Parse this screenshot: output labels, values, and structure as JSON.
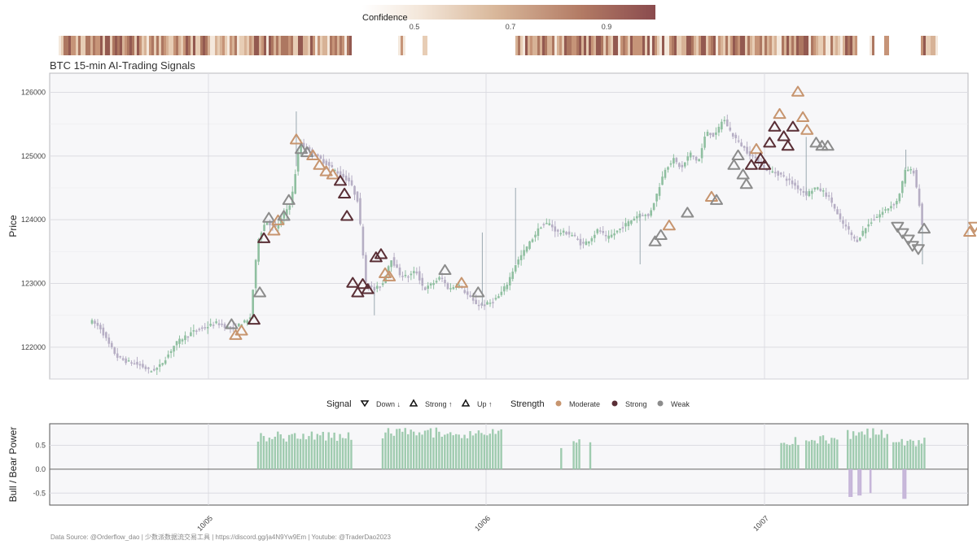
{
  "chart_data": [
    {
      "type": "candlestick",
      "title": "BTC 15-min AI-Trading Signals",
      "xlabel": "",
      "ylabel": "Price",
      "ylim": [
        121500,
        126300
      ],
      "x_ticks": [
        "10/05",
        "10/06",
        "10/07"
      ],
      "y_ticks": [
        122000,
        123000,
        124000,
        125000,
        126000
      ],
      "close_path": [
        [
          0.0,
          122400
        ],
        [
          1.0,
          122300
        ],
        [
          2.0,
          122050
        ],
        [
          3.0,
          121850
        ],
        [
          4.0,
          121780
        ],
        [
          5.0,
          121750
        ],
        [
          6.0,
          121700
        ],
        [
          7.0,
          121620
        ],
        [
          8.0,
          121680
        ],
        [
          9.0,
          121850
        ],
        [
          10.0,
          122050
        ],
        [
          11.0,
          122150
        ],
        [
          12.0,
          122230
        ],
        [
          13.0,
          122290
        ],
        [
          14.0,
          122330
        ],
        [
          15.0,
          122380
        ],
        [
          16.0,
          122330
        ],
        [
          17.0,
          122280
        ],
        [
          18.0,
          122380
        ],
        [
          19.0,
          122420
        ],
        [
          20.0,
          123700
        ],
        [
          21.0,
          124000
        ],
        [
          22.0,
          123850
        ],
        [
          23.0,
          124050
        ],
        [
          24.0,
          124300
        ],
        [
          25.0,
          125200
        ],
        [
          26.0,
          125100
        ],
        [
          27.0,
          125000
        ],
        [
          28.0,
          124900
        ],
        [
          29.0,
          124800
        ],
        [
          30.0,
          124700
        ],
        [
          31.0,
          124600
        ],
        [
          32.0,
          124300
        ],
        [
          33.0,
          123000
        ],
        [
          34.0,
          122900
        ],
        [
          35.0,
          123000
        ],
        [
          36.0,
          123400
        ],
        [
          37.0,
          123150
        ],
        [
          38.0,
          123100
        ],
        [
          39.0,
          123200
        ],
        [
          40.0,
          122900
        ],
        [
          41.0,
          123000
        ],
        [
          42.0,
          123100
        ],
        [
          43.0,
          122900
        ],
        [
          44.0,
          123000
        ],
        [
          45.0,
          122850
        ],
        [
          46.0,
          122700
        ],
        [
          47.0,
          122650
        ],
        [
          48.0,
          122700
        ],
        [
          49.0,
          122800
        ],
        [
          50.0,
          123000
        ],
        [
          51.0,
          123300
        ],
        [
          52.0,
          123500
        ],
        [
          53.0,
          123700
        ],
        [
          54.0,
          123900
        ],
        [
          55.0,
          123950
        ],
        [
          56.0,
          123800
        ],
        [
          57.0,
          123800
        ],
        [
          58.0,
          123750
        ],
        [
          59.0,
          123600
        ],
        [
          60.0,
          123700
        ],
        [
          61.0,
          123850
        ],
        [
          62.0,
          123700
        ],
        [
          63.0,
          123800
        ],
        [
          64.0,
          123900
        ],
        [
          65.0,
          124000
        ],
        [
          66.0,
          124100
        ],
        [
          67.0,
          124050
        ],
        [
          68.0,
          124400
        ],
        [
          69.0,
          124800
        ],
        [
          70.0,
          124950
        ],
        [
          71.0,
          124800
        ],
        [
          72.0,
          125050
        ],
        [
          73.0,
          124900
        ],
        [
          74.0,
          125400
        ],
        [
          75.0,
          125300
        ],
        [
          76.0,
          125600
        ],
        [
          77.0,
          125350
        ],
        [
          78.0,
          125200
        ],
        [
          79.0,
          125050
        ],
        [
          80.0,
          124950
        ],
        [
          81.0,
          124800
        ],
        [
          82.0,
          124750
        ],
        [
          83.0,
          124700
        ],
        [
          84.0,
          124600
        ],
        [
          85.0,
          124500
        ],
        [
          86.0,
          124400
        ],
        [
          87.0,
          124500
        ],
        [
          88.0,
          124450
        ],
        [
          89.0,
          124300
        ],
        [
          90.0,
          124000
        ],
        [
          91.0,
          123850
        ],
        [
          92.0,
          123650
        ],
        [
          93.0,
          123850
        ],
        [
          94.0,
          124000
        ],
        [
          95.0,
          124100
        ],
        [
          96.0,
          124200
        ],
        [
          97.0,
          124300
        ],
        [
          98.0,
          124800
        ],
        [
          99.0,
          124750
        ],
        [
          100.0,
          123900
        ]
      ],
      "signals": [
        {
          "t": 19.5,
          "p": 122420,
          "dir": "up",
          "strength": "Strong"
        },
        {
          "t": 18.0,
          "p": 122250,
          "dir": "up",
          "strength": "Moderate"
        },
        {
          "t": 17.3,
          "p": 122180,
          "dir": "up",
          "strength": "Moderate"
        },
        {
          "t": 16.8,
          "p": 122350,
          "dir": "up",
          "strength": "Weak"
        },
        {
          "t": 20.2,
          "p": 122850,
          "dir": "up",
          "strength": "Weak"
        },
        {
          "t": 20.7,
          "p": 123700,
          "dir": "up",
          "strength": "Strong"
        },
        {
          "t": 21.3,
          "p": 124020,
          "dir": "up",
          "strength": "Weak"
        },
        {
          "t": 21.9,
          "p": 123820,
          "dir": "up",
          "strength": "Moderate"
        },
        {
          "t": 22.4,
          "p": 123980,
          "dir": "up",
          "strength": "Moderate"
        },
        {
          "t": 23.1,
          "p": 124050,
          "dir": "up",
          "strength": "Weak"
        },
        {
          "t": 23.7,
          "p": 124300,
          "dir": "up",
          "strength": "Weak"
        },
        {
          "t": 24.6,
          "p": 125250,
          "dir": "up",
          "strength": "Moderate"
        },
        {
          "t": 25.2,
          "p": 125100,
          "dir": "up",
          "strength": "Weak"
        },
        {
          "t": 25.9,
          "p": 125050,
          "dir": "up",
          "strength": "Weak"
        },
        {
          "t": 26.6,
          "p": 125000,
          "dir": "up",
          "strength": "Moderate"
        },
        {
          "t": 27.4,
          "p": 124850,
          "dir": "up",
          "strength": "Moderate"
        },
        {
          "t": 28.2,
          "p": 124750,
          "dir": "up",
          "strength": "Moderate"
        },
        {
          "t": 29.0,
          "p": 124700,
          "dir": "up",
          "strength": "Moderate"
        },
        {
          "t": 29.9,
          "p": 124600,
          "dir": "up",
          "strength": "Strong"
        },
        {
          "t": 30.4,
          "p": 124400,
          "dir": "up",
          "strength": "Strong"
        },
        {
          "t": 30.7,
          "p": 124050,
          "dir": "up",
          "strength": "Strong"
        },
        {
          "t": 31.4,
          "p": 123000,
          "dir": "up",
          "strength": "Strong"
        },
        {
          "t": 32.0,
          "p": 122850,
          "dir": "up",
          "strength": "Strong"
        },
        {
          "t": 32.6,
          "p": 122980,
          "dir": "up",
          "strength": "Strong"
        },
        {
          "t": 33.2,
          "p": 122900,
          "dir": "up",
          "strength": "Strong"
        },
        {
          "t": 34.2,
          "p": 123400,
          "dir": "up",
          "strength": "Strong"
        },
        {
          "t": 34.8,
          "p": 123450,
          "dir": "up",
          "strength": "Strong"
        },
        {
          "t": 35.3,
          "p": 123150,
          "dir": "up",
          "strength": "Moderate"
        },
        {
          "t": 35.8,
          "p": 123100,
          "dir": "up",
          "strength": "Moderate"
        },
        {
          "t": 42.5,
          "p": 123200,
          "dir": "up",
          "strength": "Weak"
        },
        {
          "t": 44.5,
          "p": 123000,
          "dir": "up",
          "strength": "Moderate"
        },
        {
          "t": 46.5,
          "p": 122850,
          "dir": "up",
          "strength": "Weak"
        },
        {
          "t": 67.8,
          "p": 123650,
          "dir": "up",
          "strength": "Weak"
        },
        {
          "t": 68.5,
          "p": 123750,
          "dir": "up",
          "strength": "Weak"
        },
        {
          "t": 69.5,
          "p": 123900,
          "dir": "up",
          "strength": "Moderate"
        },
        {
          "t": 71.7,
          "p": 124100,
          "dir": "up",
          "strength": "Weak"
        },
        {
          "t": 74.6,
          "p": 124350,
          "dir": "up",
          "strength": "Moderate"
        },
        {
          "t": 75.2,
          "p": 124300,
          "dir": "up",
          "strength": "Weak"
        },
        {
          "t": 77.3,
          "p": 124850,
          "dir": "up",
          "strength": "Weak"
        },
        {
          "t": 77.8,
          "p": 125000,
          "dir": "up",
          "strength": "Weak"
        },
        {
          "t": 78.4,
          "p": 124700,
          "dir": "up",
          "strength": "Weak"
        },
        {
          "t": 78.8,
          "p": 124550,
          "dir": "up",
          "strength": "Weak"
        },
        {
          "t": 79.4,
          "p": 124850,
          "dir": "up",
          "strength": "Strong"
        },
        {
          "t": 80.0,
          "p": 125100,
          "dir": "up",
          "strength": "Moderate"
        },
        {
          "t": 80.5,
          "p": 124950,
          "dir": "up",
          "strength": "Strong"
        },
        {
          "t": 81.0,
          "p": 124850,
          "dir": "up",
          "strength": "Strong"
        },
        {
          "t": 81.6,
          "p": 125200,
          "dir": "up",
          "strength": "Strong"
        },
        {
          "t": 82.2,
          "p": 125450,
          "dir": "up",
          "strength": "Strong"
        },
        {
          "t": 82.8,
          "p": 125650,
          "dir": "up",
          "strength": "Moderate"
        },
        {
          "t": 83.3,
          "p": 125300,
          "dir": "up",
          "strength": "Strong"
        },
        {
          "t": 83.8,
          "p": 125150,
          "dir": "up",
          "strength": "Strong"
        },
        {
          "t": 84.4,
          "p": 125450,
          "dir": "up",
          "strength": "Strong"
        },
        {
          "t": 85.0,
          "p": 126000,
          "dir": "up",
          "strength": "Moderate"
        },
        {
          "t": 85.6,
          "p": 125600,
          "dir": "up",
          "strength": "Moderate"
        },
        {
          "t": 86.1,
          "p": 125400,
          "dir": "up",
          "strength": "Moderate"
        },
        {
          "t": 87.2,
          "p": 125200,
          "dir": "up",
          "strength": "Weak"
        },
        {
          "t": 87.9,
          "p": 125150,
          "dir": "up",
          "strength": "Weak"
        },
        {
          "t": 88.6,
          "p": 125150,
          "dir": "up",
          "strength": "Weak"
        },
        {
          "t": 97.0,
          "p": 123900,
          "dir": "down",
          "strength": "Weak"
        },
        {
          "t": 97.6,
          "p": 123800,
          "dir": "down",
          "strength": "Weak"
        },
        {
          "t": 98.3,
          "p": 123700,
          "dir": "down",
          "strength": "Weak"
        },
        {
          "t": 98.8,
          "p": 123600,
          "dir": "down",
          "strength": "Weak"
        },
        {
          "t": 99.5,
          "p": 123550,
          "dir": "down",
          "strength": "Weak"
        },
        {
          "t": 100.2,
          "p": 123850,
          "dir": "up",
          "strength": "Weak"
        },
        {
          "t": 105.7,
          "p": 123800,
          "dir": "up",
          "strength": "Moderate"
        },
        {
          "t": 106.3,
          "p": 123900,
          "dir": "down",
          "strength": "Moderate"
        }
      ],
      "legend": {
        "signal_title": "Signal",
        "signal_items": [
          "Down ↓",
          "Strong ↑",
          "Up ↑"
        ],
        "strength_title": "Strength",
        "strength_items": [
          "Moderate",
          "Strong",
          "Weak"
        ],
        "placement": "bottom"
      },
      "strength_colors": {
        "Moderate": "#c7956f",
        "Strong": "#5a2f36",
        "Weak": "#8c8c8c"
      },
      "candle_colors": {
        "up": "#8fbfa0",
        "down": "#b6aec4"
      }
    },
    {
      "type": "bar",
      "title": "",
      "xlabel": "",
      "ylabel": "Bull / Bear Power",
      "ylim": [
        -0.75,
        0.95
      ],
      "y_ticks": [
        -0.5,
        0.0,
        0.5
      ],
      "x_ticks": [
        "10/05",
        "10/06",
        "10/07"
      ],
      "bull_segments": [
        [
          20.0,
          31.5,
          0.72
        ],
        [
          35.0,
          49.5,
          0.8
        ],
        [
          56.5,
          56.5,
          0.55
        ],
        [
          58.0,
          58.8,
          0.65
        ],
        [
          60.0,
          60.0,
          0.63
        ],
        [
          83.0,
          85.2,
          0.62
        ],
        [
          86.0,
          90.0,
          0.65
        ],
        [
          91.0,
          96.0,
          0.78
        ],
        [
          96.5,
          100.5,
          0.6
        ]
      ],
      "bear_segments": [
        [
          127.0,
          127.5,
          -0.58
        ],
        [
          128.5,
          129.0,
          -0.55
        ],
        [
          130.5,
          130.5,
          -0.5
        ],
        [
          136.0,
          136.5,
          -0.62
        ]
      ],
      "colors": {
        "bull": "#9fcbaf",
        "bear": "#c6b6d9"
      }
    },
    {
      "type": "heatmap",
      "title": "Confidence",
      "scale_ticks": [
        0.5,
        0.7,
        0.9
      ],
      "colors": [
        "#f7efe6",
        "#d7b497",
        "#b27a5f",
        "#8c4f4d"
      ]
    }
  ],
  "caption": "Data Source: @Orderflow_dao | 少数派数据流交易工具 | https://discord.gg/ja4N9Yw9Em | Youtube: @TraderDao2023"
}
